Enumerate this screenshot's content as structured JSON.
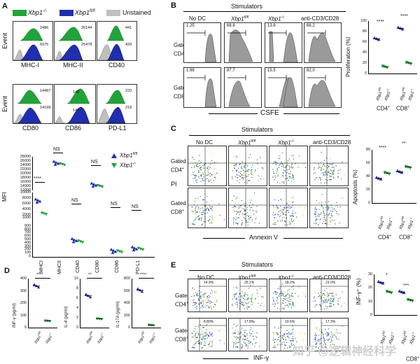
{
  "panels": {
    "a": "A",
    "b": "B",
    "c": "C",
    "d": "D",
    "e": "E"
  },
  "colors": {
    "green": "#22a33a",
    "blue": "#1f2fb0",
    "gray": "#bfbfbf",
    "nav": "#1a237e"
  },
  "A": {
    "legend": [
      "Xbp1",
      "Xbp1",
      "Unstained"
    ],
    "legend_sup": [
      "-/-",
      "fl/fl",
      ""
    ],
    "event_label": "Event",
    "hist_labels": [
      "MHC-I",
      "MHC-II",
      "CD40",
      "CD80",
      "CD86",
      "PD-L1"
    ],
    "hist_values": [
      [
        "2486",
        "6975"
      ],
      [
        "26144",
        "25478"
      ],
      [
        "441",
        "439"
      ],
      [
        "14487",
        "14199"
      ],
      [
        "148",
        "147"
      ],
      [
        "220",
        "218"
      ]
    ],
    "mfi_label": "MFI",
    "mfi_legend": [
      "Xbp1",
      "Xbp1"
    ],
    "mfi_legend_sup": [
      "fl/fl",
      "-/-"
    ],
    "mfi_yticks_top": [
      "28000",
      "26000",
      "24000",
      "22000",
      "20000",
      "18000",
      "16000",
      "14000",
      "12000"
    ],
    "mfi_yticks_bottom": [
      "10000",
      "8000",
      "6000",
      "4000",
      "2000",
      "1000",
      "900",
      "800",
      "700",
      "600",
      "500",
      "400",
      "300",
      "200",
      "100",
      "0"
    ],
    "mfi_categories": [
      "MHCI",
      "MHCII",
      "CD40",
      "CD80",
      "CD86",
      "PD-L1"
    ],
    "sig": [
      "****",
      "NS",
      "NS",
      "NS",
      "NS",
      "NS"
    ]
  },
  "B": {
    "stimulators": "Stimulators",
    "columns": [
      "No DC",
      "Xbp1",
      "Xbp1",
      "anti-CD3/CD28"
    ],
    "columns_sup": [
      "",
      "fl/fl",
      "-/-",
      ""
    ],
    "rows": [
      "Gated on",
      "Gated on"
    ],
    "rows_sub": [
      "CD4",
      "CD8"
    ],
    "cd4_values": [
      "1.25",
      "68.6",
      "13.6",
      "66.2"
    ],
    "cd8_values": [
      "1.98",
      "87.7",
      "15.5",
      "82.0"
    ],
    "xaxis": "CSFE",
    "ylabel": "Proliferation (%)",
    "yticks": [
      "100",
      "80",
      "60",
      "40",
      "20",
      "0"
    ],
    "groups": [
      "CD4",
      "CD8"
    ],
    "xcats": [
      "Xbp1",
      "Xbp1"
    ],
    "xcats_sup": [
      "fl/fl",
      "-/-"
    ],
    "sig": [
      "****",
      "****"
    ]
  },
  "C": {
    "stimulators": "Stimulators",
    "columns": [
      "No DC",
      "Xbp1",
      "Xbp1",
      "anti-CD3/CD28"
    ],
    "columns_sup": [
      "",
      "fl/fl",
      "-/-",
      ""
    ],
    "rows": [
      "Gated on",
      "Gated on"
    ],
    "rows_sub": [
      "CD4",
      "CD8"
    ],
    "yaxis": "PI",
    "xaxis": "Annexin V",
    "ylabel": "Apoptosis (%)",
    "yticks": [
      "80",
      "60",
      "40",
      "20",
      "0"
    ],
    "groups": [
      "CD4",
      "CD8"
    ],
    "sig": [
      "****",
      "**"
    ]
  },
  "D": {
    "charts": [
      {
        "ylabel": "INF-γ (pg/ml)",
        "yticks": [
          "400",
          "300",
          "200",
          "100",
          "0"
        ],
        "sig": "****"
      },
      {
        "ylabel": "IL-4 (pg/ml)",
        "yticks": [
          "10",
          "8",
          "6",
          "4",
          "2",
          "0"
        ],
        "sig": "**"
      },
      {
        "ylabel": "IL-17A (pg/ml)",
        "yticks": [
          "800",
          "600",
          "400",
          "200",
          "0"
        ],
        "sig": "****"
      }
    ],
    "xcats": [
      "Xbp1",
      "Xbp1"
    ],
    "xcats_sup": [
      "fl/fl",
      "-/-"
    ]
  },
  "E": {
    "stimulators": "Stimulators",
    "columns": [
      "No DC",
      "Xbp1",
      "Xbp1",
      "anti-CD3/CD28"
    ],
    "columns_sup": [
      "",
      "fl/fl",
      "-/-",
      ""
    ],
    "rows": [
      "Gated on",
      "Gated on"
    ],
    "rows_sub": [
      "CD4",
      "CD8"
    ],
    "cd4_values": [
      "14.9%",
      "25.1%",
      "18.2%",
      "23.0%"
    ],
    "cd8_values": [
      "8.89%",
      "17.8%",
      "10.6%",
      "17.3%"
    ],
    "xaxis": "INF-γ",
    "ylabel": "INF-γ⁺ (%)",
    "yticks": [
      "30",
      "20",
      "10",
      "0"
    ],
    "groups": [
      "CD4",
      "CD8"
    ],
    "sig": [
      "*",
      "***"
    ]
  },
  "watermark": "知乎 @逻辑神经科学",
  "chart_data": [
    {
      "type": "scatter",
      "title": "",
      "ylabel": "MFI",
      "categories": [
        "MHCI",
        "MHCII",
        "CD40",
        "CD80",
        "CD86",
        "PD-L1"
      ],
      "series": [
        {
          "name": "Xbp1 fl/fl",
          "values": [
            7000,
            25000,
            470,
            14600,
            150,
            225
          ]
        },
        {
          "name": "Xbp1 -/-",
          "values": [
            2500,
            24500,
            440,
            14100,
            145,
            220
          ]
        }
      ]
    },
    {
      "type": "scatter",
      "ylabel": "Proliferation (%)",
      "categories": [
        "CD4 Xbp1 fl/fl",
        "CD4 Xbp1 -/-",
        "CD8 Xbp1 fl/fl",
        "CD8 Xbp1 -/-"
      ],
      "values": [
        66,
        13,
        86,
        20
      ],
      "ylim": [
        0,
        100
      ]
    },
    {
      "type": "scatter",
      "ylabel": "Apoptosis (%)",
      "categories": [
        "CD4 Xbp1 fl/fl",
        "CD4 Xbp1 -/-",
        "CD8 Xbp1 fl/fl",
        "CD8 Xbp1 -/-"
      ],
      "values": [
        37,
        45,
        47,
        54
      ],
      "ylim": [
        0,
        80
      ]
    },
    {
      "type": "scatter",
      "ylabel": "INF-γ (pg/ml)",
      "categories": [
        "Xbp1 fl/fl",
        "Xbp1 -/-"
      ],
      "values": [
        340,
        55
      ],
      "ylim": [
        0,
        400
      ]
    },
    {
      "type": "scatter",
      "ylabel": "IL-4 (pg/ml)",
      "categories": [
        "Xbp1 fl/fl",
        "Xbp1 -/-"
      ],
      "values": [
        6.5,
        1.8
      ],
      "ylim": [
        0,
        10
      ]
    },
    {
      "type": "scatter",
      "ylabel": "IL-17A (pg/ml)",
      "categories": [
        "Xbp1 fl/fl",
        "Xbp1 -/-"
      ],
      "values": [
        610,
        40
      ],
      "ylim": [
        0,
        800
      ]
    },
    {
      "type": "scatter",
      "ylabel": "INF-γ⁺ (%)",
      "categories": [
        "CD4 Xbp1 fl/fl",
        "CD4 Xbp1 -/-",
        "CD8 Xbp1 fl/fl",
        "CD8 Xbp1 -/-"
      ],
      "values": [
        24,
        17,
        17,
        11
      ],
      "ylim": [
        0,
        30
      ]
    }
  ]
}
